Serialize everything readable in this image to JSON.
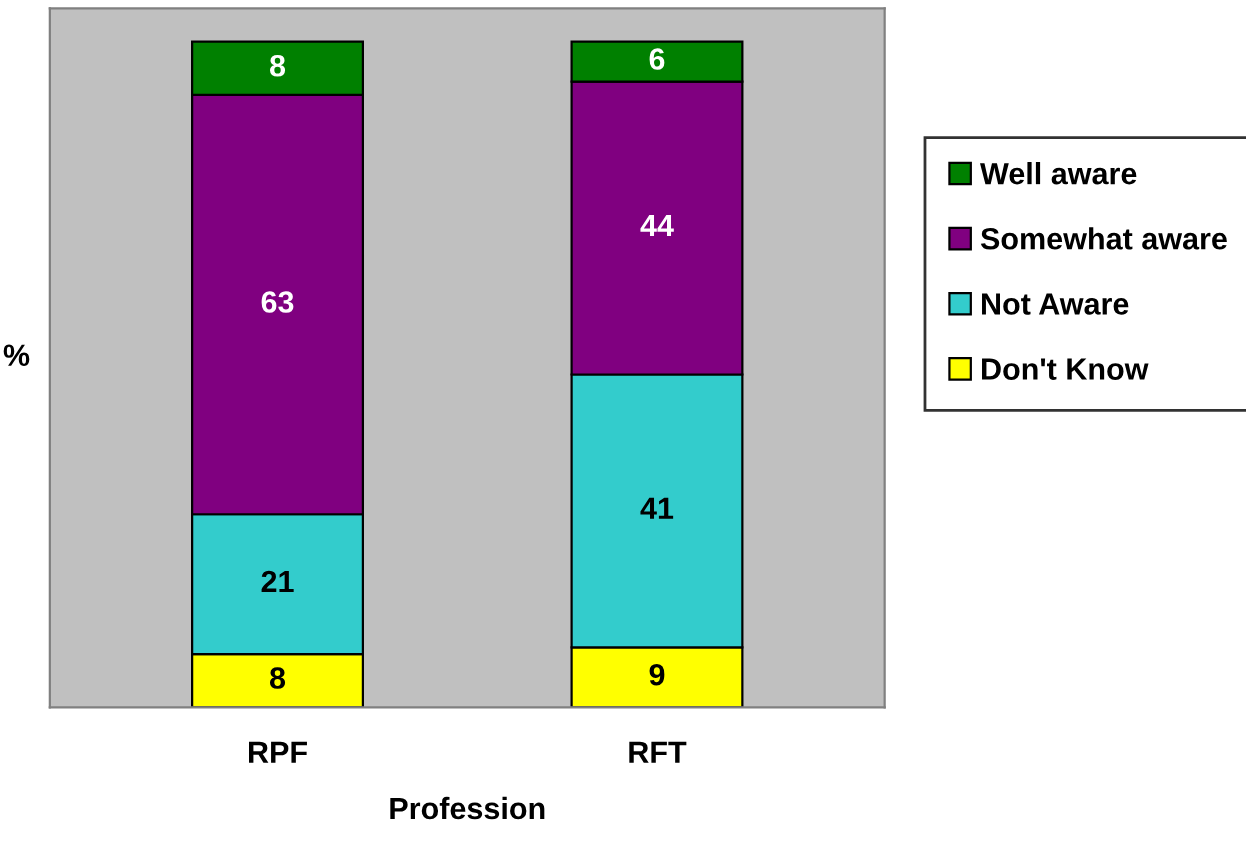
{
  "chart_data": {
    "type": "bar",
    "stacked": true,
    "xlabel": "Profession",
    "ylabel": "%",
    "categories": [
      "RPF",
      "RFT"
    ],
    "series": [
      {
        "name": "Don't Know",
        "color": "#ffff00",
        "values": [
          8,
          9
        ]
      },
      {
        "name": "Not Aware",
        "color": "#33cccc",
        "values": [
          21,
          41
        ]
      },
      {
        "name": "Somewhat aware",
        "color": "#800080",
        "values": [
          63,
          44
        ]
      },
      {
        "name": "Well aware",
        "color": "#008000",
        "values": [
          8,
          6
        ]
      }
    ],
    "data_labels": true,
    "legend": "right",
    "grid": false
  }
}
